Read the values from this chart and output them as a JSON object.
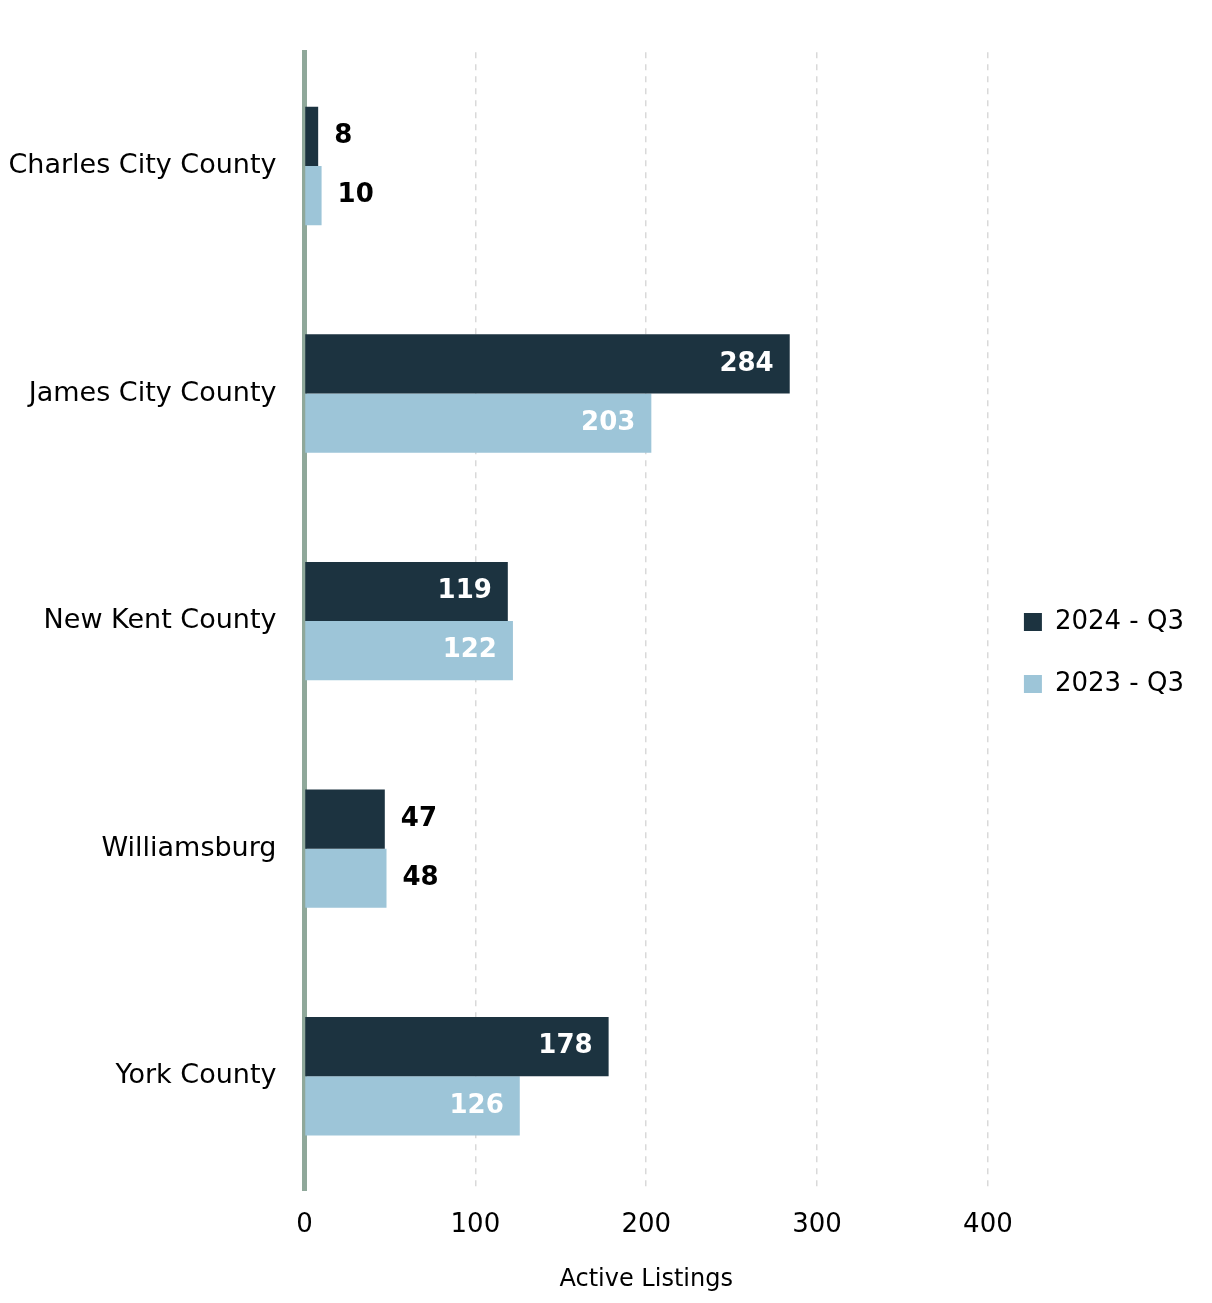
{
  "chart_data": {
    "type": "bar",
    "orientation": "horizontal",
    "xlabel": "Active Listings",
    "categories": [
      "Charles City County",
      "James City County",
      "New Kent County",
      "Williamsburg",
      "York County"
    ],
    "series": [
      {
        "name": "2024 - Q3",
        "color": "#1c3340",
        "values": [
          8,
          284,
          119,
          47,
          178
        ]
      },
      {
        "name": "2023 - Q3",
        "color": "#9dc5d8",
        "values": [
          10,
          203,
          122,
          48,
          126
        ]
      }
    ],
    "xlim": [
      0,
      400
    ],
    "xticks": [
      0,
      100,
      200,
      300,
      400
    ],
    "grid": "x",
    "legend": "right",
    "data_labels": true
  }
}
